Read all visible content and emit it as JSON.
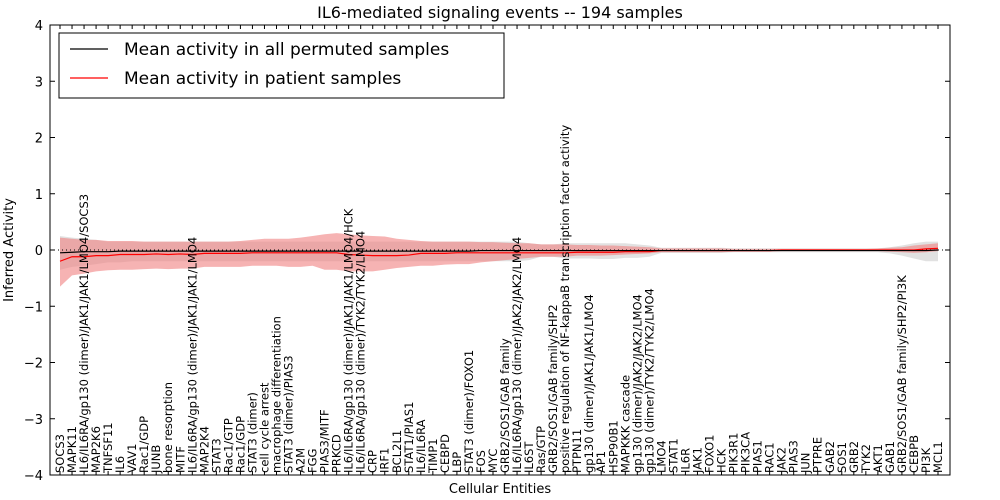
{
  "chart_data": {
    "type": "line",
    "title": "IL6-mediated signaling events -- 194 samples",
    "xlabel": "Cellular Entities",
    "ylabel": "Inferred Activity",
    "ylim": [
      -4,
      4
    ],
    "yticks": [
      -4,
      -3,
      -2,
      -1,
      0,
      1,
      2,
      3,
      4
    ],
    "legend_position": "top-left",
    "colors": {
      "permuted": "#000000",
      "patient": "#ff0000",
      "patient_band": "#f08080",
      "permuted_band": "#c8c8c8"
    },
    "categories": [
      "SOCS3",
      "MAPK11",
      "IL6/IL6RA/gp130 (dimer)/JAK1/JAK1/LMO4/SOCS3",
      "MAP2K6",
      "TNFSF11",
      "IL6",
      "VAV1",
      "Rac1/GDP",
      "JUNB",
      "bone resorption",
      "MITF",
      "IL6/IL6RA/gp130 (dimer)/JAK1/JAK1/LMO4",
      "MAP2K4",
      "STAT3",
      "Rac1/GTP",
      "Rac1/GDP",
      "STAT3 (dimer)",
      "cell cycle arrest",
      "macrophage differentiation",
      "STAT3 (dimer)/PIAS3",
      "A2M",
      "FGG",
      "PIAS3/MITF",
      "PRKCD",
      "IL6/IL6RA/gp130 (dimer)/JAK1/JAK1/LMO4/HCK",
      "IL6/IL6RA/gp130 (dimer)/TYK2/TYK2/LMO4",
      "CRP",
      "IRF1",
      "BCL2L1",
      "STAT1/PIAS1",
      "IL6/IL6RA",
      "TIMP1",
      "CEBPD",
      "LBP",
      "STAT3 (dimer)/FOXO1",
      "FOS",
      "MYC",
      "GRB2/SOS1/GAB family",
      "IL6/IL6RA/gp130 (dimer)/JAK2/JAK2/LMO4",
      "IL6ST",
      "Ras/GTP",
      "GRB2/SOS1/GAB family/SHP2",
      "positive regulation of NF-kappaB transcription factor activity",
      "PTPN11",
      "gp130 (dimer)/JAK1/JAK1/LMO4",
      "AP1",
      "HSP90B1",
      "MAPKKK cascade",
      "gp130 (dimer)/JAK2/JAK2/LMO4",
      "gp130 (dimer)/TYK2/TYK2/LMO4",
      "LMO4",
      "STAT1",
      "IL6R",
      "JAK1",
      "FOXO1",
      "HCK",
      "PIK3R1",
      "PIK3CA",
      "PIAS1",
      "RAC1",
      "JAK2",
      "PIAS3",
      "JUN",
      "PTPRE",
      "GAB2",
      "SOS1",
      "GRB2",
      "TYK2",
      "AKT1",
      "GAB1",
      "GRB2/SOS1/GAB family/SHP2/PI3K",
      "CEBPB",
      "PI3K",
      "MCL1"
    ],
    "series": [
      {
        "name": "Mean activity in all permuted samples",
        "values": [
          -0.05,
          -0.04,
          -0.03,
          -0.03,
          -0.03,
          -0.02,
          -0.02,
          -0.02,
          -0.02,
          -0.02,
          -0.02,
          -0.02,
          -0.02,
          -0.02,
          -0.02,
          -0.02,
          -0.02,
          -0.02,
          -0.02,
          -0.02,
          -0.02,
          -0.02,
          -0.02,
          -0.02,
          -0.02,
          -0.02,
          -0.02,
          -0.02,
          -0.02,
          -0.02,
          -0.02,
          -0.02,
          -0.02,
          -0.02,
          -0.02,
          -0.01,
          -0.01,
          -0.01,
          -0.01,
          -0.01,
          -0.01,
          -0.01,
          -0.01,
          -0.01,
          -0.01,
          -0.01,
          -0.01,
          -0.01,
          -0.01,
          -0.01,
          -0.01,
          -0.01,
          -0.01,
          -0.01,
          -0.01,
          -0.01,
          -0.01,
          -0.01,
          -0.01,
          -0.01,
          -0.01,
          -0.01,
          -0.01,
          -0.01,
          -0.01,
          -0.01,
          -0.01,
          -0.01,
          -0.01,
          -0.01,
          -0.01,
          -0.01,
          -0.01,
          0.0
        ],
        "band_low": [
          -0.35,
          -0.3,
          -0.28,
          -0.25,
          -0.22,
          -0.22,
          -0.2,
          -0.2,
          -0.2,
          -0.2,
          -0.2,
          -0.2,
          -0.2,
          -0.2,
          -0.2,
          -0.2,
          -0.2,
          -0.2,
          -0.2,
          -0.2,
          -0.2,
          -0.2,
          -0.2,
          -0.2,
          -0.2,
          -0.2,
          -0.2,
          -0.2,
          -0.2,
          -0.2,
          -0.2,
          -0.2,
          -0.2,
          -0.2,
          -0.2,
          -0.2,
          -0.2,
          -0.2,
          -0.2,
          -0.18,
          -0.12,
          -0.12,
          -0.15,
          -0.15,
          -0.15,
          -0.16,
          -0.16,
          -0.14,
          -0.14,
          -0.12,
          -0.05,
          -0.05,
          -0.05,
          -0.05,
          -0.05,
          -0.05,
          -0.04,
          -0.04,
          -0.04,
          -0.04,
          -0.04,
          -0.04,
          -0.04,
          -0.04,
          -0.04,
          -0.04,
          -0.04,
          -0.04,
          -0.04,
          -0.06,
          -0.1,
          -0.15,
          -0.2,
          -0.2
        ],
        "band_high": [
          0.25,
          0.22,
          0.2,
          0.18,
          0.15,
          0.15,
          0.15,
          0.15,
          0.15,
          0.15,
          0.15,
          0.15,
          0.15,
          0.15,
          0.15,
          0.15,
          0.15,
          0.15,
          0.15,
          0.15,
          0.15,
          0.15,
          0.15,
          0.15,
          0.15,
          0.15,
          0.15,
          0.15,
          0.15,
          0.15,
          0.15,
          0.15,
          0.15,
          0.15,
          0.15,
          0.15,
          0.15,
          0.15,
          0.15,
          0.12,
          0.1,
          0.1,
          0.12,
          0.12,
          0.12,
          0.12,
          0.12,
          0.12,
          0.1,
          0.08,
          0.04,
          0.04,
          0.04,
          0.04,
          0.04,
          0.04,
          0.03,
          0.03,
          0.03,
          0.03,
          0.03,
          0.03,
          0.03,
          0.03,
          0.03,
          0.03,
          0.03,
          0.03,
          0.03,
          0.05,
          0.08,
          0.12,
          0.15,
          0.15
        ]
      },
      {
        "name": "Mean activity in patient samples",
        "values": [
          -0.2,
          -0.12,
          -0.12,
          -0.1,
          -0.1,
          -0.08,
          -0.08,
          -0.08,
          -0.07,
          -0.08,
          -0.07,
          -0.08,
          -0.06,
          -0.06,
          -0.06,
          -0.06,
          -0.05,
          -0.05,
          -0.05,
          -0.05,
          -0.05,
          -0.05,
          -0.05,
          -0.05,
          -0.08,
          -0.09,
          -0.1,
          -0.1,
          -0.1,
          -0.09,
          -0.06,
          -0.06,
          -0.06,
          -0.05,
          -0.05,
          -0.05,
          -0.05,
          -0.05,
          -0.05,
          -0.05,
          -0.05,
          -0.05,
          -0.05,
          -0.04,
          -0.04,
          -0.04,
          -0.04,
          -0.03,
          -0.03,
          -0.03,
          -0.01,
          -0.01,
          -0.01,
          -0.01,
          -0.01,
          -0.01,
          -0.01,
          -0.01,
          -0.01,
          -0.01,
          0.0,
          0.0,
          0.0,
          0.0,
          0.0,
          0.0,
          0.0,
          0.0,
          0.0,
          0.0,
          0.0,
          0.0,
          0.02,
          0.03
        ],
        "band_low": [
          -0.65,
          -0.45,
          -0.42,
          -0.38,
          -0.36,
          -0.35,
          -0.35,
          -0.34,
          -0.33,
          -0.34,
          -0.33,
          -0.33,
          -0.3,
          -0.3,
          -0.3,
          -0.3,
          -0.28,
          -0.28,
          -0.28,
          -0.3,
          -0.3,
          -0.28,
          -0.35,
          -0.35,
          -0.38,
          -0.38,
          -0.38,
          -0.35,
          -0.32,
          -0.3,
          -0.28,
          -0.28,
          -0.26,
          -0.25,
          -0.25,
          -0.22,
          -0.2,
          -0.18,
          -0.16,
          -0.14,
          -0.12,
          -0.12,
          -0.12,
          -0.1,
          -0.1,
          -0.1,
          -0.09,
          -0.08,
          -0.07,
          -0.06,
          -0.04,
          -0.04,
          -0.04,
          -0.04,
          -0.04,
          -0.04,
          -0.03,
          -0.03,
          -0.03,
          -0.03,
          -0.02,
          -0.02,
          -0.02,
          -0.02,
          -0.02,
          -0.02,
          -0.02,
          -0.02,
          -0.02,
          -0.03,
          -0.04,
          -0.05,
          -0.04,
          -0.02
        ],
        "band_high": [
          0.22,
          0.2,
          0.18,
          0.18,
          0.16,
          0.16,
          0.16,
          0.15,
          0.15,
          0.15,
          0.15,
          0.15,
          0.15,
          0.15,
          0.15,
          0.16,
          0.18,
          0.2,
          0.2,
          0.2,
          0.22,
          0.25,
          0.28,
          0.3,
          0.28,
          0.26,
          0.25,
          0.24,
          0.2,
          0.18,
          0.16,
          0.15,
          0.15,
          0.15,
          0.15,
          0.14,
          0.14,
          0.13,
          0.12,
          0.12,
          0.1,
          0.1,
          0.1,
          0.09,
          0.09,
          0.08,
          0.08,
          0.07,
          0.06,
          0.05,
          0.03,
          0.03,
          0.03,
          0.03,
          0.03,
          0.03,
          0.02,
          0.02,
          0.02,
          0.02,
          0.02,
          0.02,
          0.02,
          0.02,
          0.02,
          0.02,
          0.02,
          0.02,
          0.03,
          0.04,
          0.05,
          0.08,
          0.1,
          0.12
        ]
      }
    ]
  }
}
